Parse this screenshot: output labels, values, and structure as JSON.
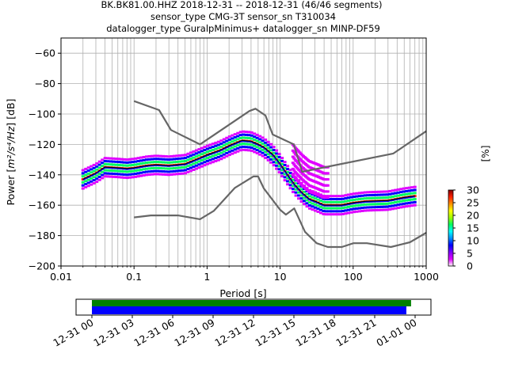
{
  "chart_data": {
    "type": "line",
    "title_lines": [
      "BK.BK81.00.HHZ   2018-12-31 -- 2018-12-31  (46/46 segments)",
      "sensor_type CMG-3T sensor_sn T310034",
      "datalogger_type GuralpMinimus+ datalogger_sn MINP-DF59"
    ],
    "xlabel": "Period [s]",
    "ylabel_main": "Power [",
    "ylabel_unit": "m²/s⁴/Hz",
    "ylabel_tail": "] [dB]",
    "x_scale": "log",
    "xlim": [
      0.01,
      1000
    ],
    "ylim": [
      -200,
      -50
    ],
    "x_ticks": [
      {
        "value": 0.01,
        "label": "0.01"
      },
      {
        "value": 0.1,
        "label": "0.1"
      },
      {
        "value": 1,
        "label": "1"
      },
      {
        "value": 10,
        "label": "10"
      },
      {
        "value": 100,
        "label": "100"
      },
      {
        "value": 1000,
        "label": "1000"
      }
    ],
    "y_ticks": [
      {
        "value": -60,
        "label": "−60"
      },
      {
        "value": -80,
        "label": "−80"
      },
      {
        "value": -100,
        "label": "−100"
      },
      {
        "value": -120,
        "label": "−120"
      },
      {
        "value": -140,
        "label": "−140"
      },
      {
        "value": -160,
        "label": "−160"
      },
      {
        "value": -180,
        "label": "−180"
      },
      {
        "value": -200,
        "label": "−200"
      }
    ],
    "grid": true,
    "colors": {
      "noise_model": "#666666",
      "mean": "#000000",
      "median": "#0000ff"
    },
    "series": [
      {
        "role": "high-noise-model",
        "points": [
          [
            0.1,
            -91.5
          ],
          [
            0.22,
            -97.4
          ],
          [
            0.32,
            -110.5
          ],
          [
            0.8,
            -120.0
          ],
          [
            3.8,
            -98.0
          ],
          [
            4.6,
            -96.5
          ],
          [
            6.3,
            -101.0
          ],
          [
            7.9,
            -113.5
          ],
          [
            15.4,
            -120.0
          ],
          [
            20,
            -138.0
          ],
          [
            354.8,
            -126.0
          ],
          [
            1000,
            -111.3
          ]
        ]
      },
      {
        "role": "low-noise-model",
        "points": [
          [
            0.1,
            -168.0
          ],
          [
            0.17,
            -166.7
          ],
          [
            0.4,
            -166.7
          ],
          [
            0.8,
            -169.2
          ],
          [
            1.24,
            -163.7
          ],
          [
            2.4,
            -148.6
          ],
          [
            4.3,
            -141.1
          ],
          [
            5,
            -141.1
          ],
          [
            6,
            -149.0
          ],
          [
            10,
            -163.0
          ],
          [
            12,
            -166.2
          ],
          [
            15.6,
            -162.1
          ],
          [
            21.9,
            -177.5
          ],
          [
            31.6,
            -185.0
          ],
          [
            45,
            -187.5
          ],
          [
            70,
            -187.5
          ],
          [
            101,
            -185.0
          ],
          [
            154,
            -185.0
          ],
          [
            328,
            -187.5
          ],
          [
            600,
            -184.4
          ],
          [
            1000,
            -178.1
          ]
        ]
      },
      {
        "role": "mean",
        "points": [
          [
            0.02,
            -143
          ],
          [
            0.03,
            -139
          ],
          [
            0.04,
            -135
          ],
          [
            0.06,
            -135.5
          ],
          [
            0.08,
            -136
          ],
          [
            0.1,
            -135.5
          ],
          [
            0.15,
            -134
          ],
          [
            0.2,
            -133.5
          ],
          [
            0.3,
            -134
          ],
          [
            0.5,
            -133
          ],
          [
            0.8,
            -129
          ],
          [
            1,
            -127
          ],
          [
            1.5,
            -124
          ],
          [
            2,
            -121
          ],
          [
            3,
            -117.5
          ],
          [
            4,
            -118
          ],
          [
            5,
            -120
          ],
          [
            6,
            -122
          ],
          [
            8,
            -127
          ],
          [
            10,
            -133
          ],
          [
            13,
            -141
          ],
          [
            16,
            -147
          ],
          [
            20,
            -152
          ],
          [
            25,
            -156
          ],
          [
            32,
            -158
          ],
          [
            40,
            -160
          ],
          [
            50,
            -160
          ],
          [
            70,
            -160
          ],
          [
            100,
            -158.5
          ],
          [
            150,
            -157.5
          ],
          [
            300,
            -157
          ],
          [
            500,
            -155
          ],
          [
            700,
            -154
          ]
        ]
      },
      {
        "role": "median",
        "points": [
          [
            0.02,
            -143.5
          ],
          [
            0.03,
            -139.5
          ],
          [
            0.04,
            -135.5
          ],
          [
            0.06,
            -136
          ],
          [
            0.08,
            -136.5
          ],
          [
            0.1,
            -136
          ],
          [
            0.15,
            -134.5
          ],
          [
            0.2,
            -134
          ],
          [
            0.3,
            -134.5
          ],
          [
            0.5,
            -133.5
          ],
          [
            0.8,
            -129.5
          ],
          [
            1,
            -127.5
          ],
          [
            1.5,
            -124.5
          ],
          [
            2,
            -121.5
          ],
          [
            3,
            -118
          ],
          [
            4,
            -118.5
          ],
          [
            5,
            -120.5
          ],
          [
            6,
            -122.5
          ],
          [
            8,
            -127.5
          ],
          [
            10,
            -133.5
          ],
          [
            13,
            -141.5
          ],
          [
            16,
            -147.5
          ],
          [
            20,
            -152.5
          ],
          [
            25,
            -156.5
          ],
          [
            32,
            -158.5
          ],
          [
            40,
            -160.5
          ],
          [
            50,
            -160.5
          ],
          [
            70,
            -160.5
          ],
          [
            100,
            -159
          ],
          [
            150,
            -158
          ],
          [
            300,
            -157.5
          ],
          [
            500,
            -155.5
          ],
          [
            700,
            -154.5
          ]
        ]
      }
    ],
    "psd_spread": {
      "center_offsets_db": [
        -6,
        -4,
        -2,
        0,
        2,
        4,
        6
      ],
      "percent_values": [
        2,
        8,
        15,
        28,
        15,
        8,
        2
      ],
      "outlier_band": {
        "x_from": 15,
        "x_to": 45,
        "offset_from_db": 5,
        "offset_to_db": 28,
        "percent": 1
      }
    },
    "colorbar": {
      "label": "[%]",
      "min": 0,
      "max": 30,
      "ticks": [
        {
          "value": 0,
          "label": "0"
        },
        {
          "value": 5,
          "label": "5"
        },
        {
          "value": 10,
          "label": "10"
        },
        {
          "value": 15,
          "label": "15"
        },
        {
          "value": 20,
          "label": "20"
        },
        {
          "value": 25,
          "label": "25"
        },
        {
          "value": 30,
          "label": "30"
        }
      ],
      "colors": [
        "#ffffff",
        "#e000ff",
        "#8000ff",
        "#0000ff",
        "#0090ff",
        "#00ffff",
        "#00ff60",
        "#a0ff00",
        "#ffff00",
        "#ff9000",
        "#ff2000",
        "#800000"
      ]
    },
    "coverage": {
      "data_hours_start": 0,
      "data_hours_end": 23.7,
      "segment_hours_end": 23.35,
      "top_color": "#008000",
      "bottom_color": "#0000ff",
      "ticks": [
        {
          "hours": 0,
          "label": "12-31 00"
        },
        {
          "hours": 3,
          "label": "12-31 03"
        },
        {
          "hours": 6,
          "label": "12-31 06"
        },
        {
          "hours": 9,
          "label": "12-31 09"
        },
        {
          "hours": 12,
          "label": "12-31 12"
        },
        {
          "hours": 15,
          "label": "12-31 15"
        },
        {
          "hours": 18,
          "label": "12-31 18"
        },
        {
          "hours": 21,
          "label": "12-31 21"
        },
        {
          "hours": 24,
          "label": "01-01 00"
        }
      ]
    }
  }
}
